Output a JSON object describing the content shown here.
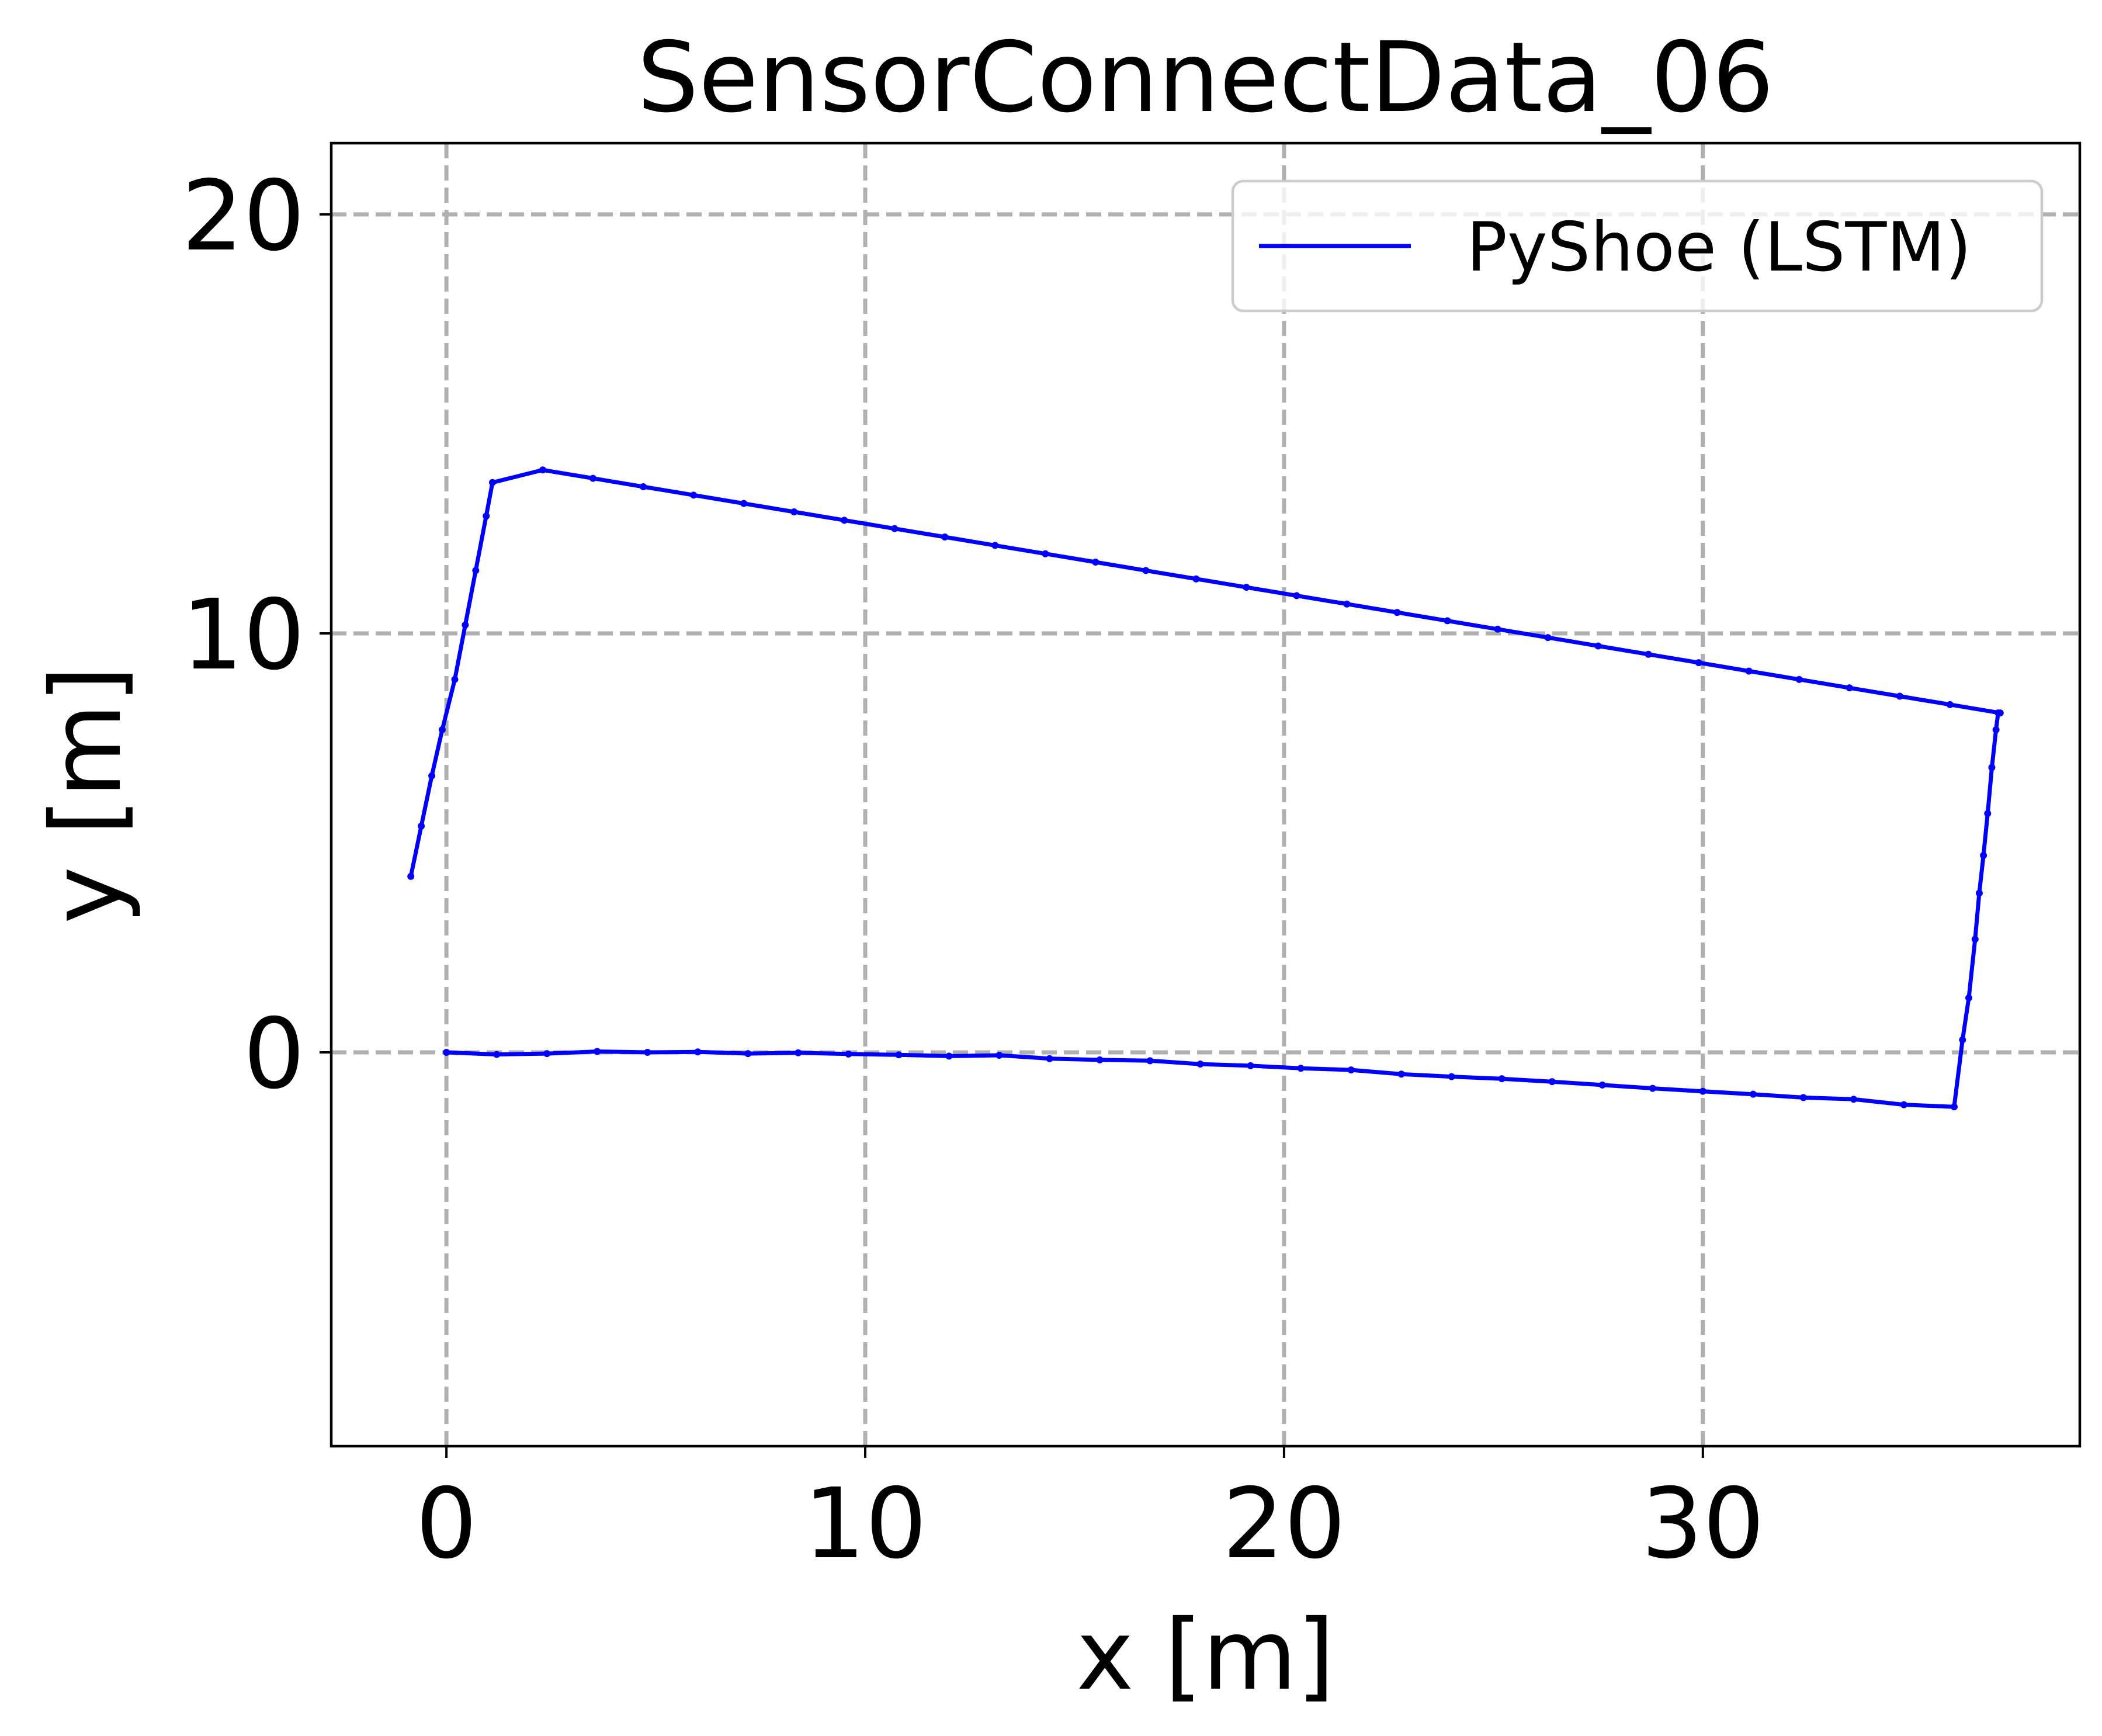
{
  "chart_data": {
    "type": "line",
    "title": "SensorConnectData_06",
    "xlabel": "x [m]",
    "ylabel": "y [m]",
    "xlim": [
      -2.75,
      39
    ],
    "ylim": [
      -9.4,
      21.7
    ],
    "xticks": [
      0,
      10,
      20,
      30
    ],
    "yticks": [
      0,
      10,
      20
    ],
    "tick_labels_x": [
      "0",
      "10",
      "20",
      "30"
    ],
    "tick_labels_y": [
      "0",
      "10",
      "20"
    ],
    "grid": true,
    "legend_position": "upper right",
    "series": [
      {
        "name": "PyShoe (LSTM)",
        "color": "#0000ff",
        "marker": "dot",
        "x": [
          0,
          1.2,
          2.4,
          3.6,
          4.8,
          6.0,
          7.2,
          8.4,
          9.6,
          10.8,
          12.0,
          13.2,
          14.4,
          15.6,
          16.8,
          18.0,
          19.2,
          20.4,
          21.6,
          22.8,
          24.0,
          25.2,
          26.4,
          27.6,
          28.8,
          30.0,
          31.2,
          32.4,
          33.6,
          34.8,
          36.0,
          36.2,
          36.35,
          36.5,
          36.6,
          36.7,
          36.8,
          36.9,
          37.0,
          37.05,
          37.1,
          35.9,
          34.7,
          33.5,
          32.3,
          31.1,
          29.9,
          28.7,
          27.5,
          26.3,
          25.1,
          23.9,
          22.7,
          21.5,
          20.3,
          19.1,
          17.9,
          16.7,
          15.5,
          14.3,
          13.1,
          11.9,
          10.7,
          9.5,
          8.3,
          7.1,
          5.9,
          4.7,
          3.5,
          2.3,
          1.1,
          0.95,
          0.7,
          0.45,
          0.2,
          -0.1,
          -0.35,
          -0.6,
          -0.85
        ],
        "y": [
          0.0,
          -0.05,
          -0.03,
          0.02,
          0.0,
          0.01,
          -0.03,
          -0.01,
          -0.04,
          -0.06,
          -0.09,
          -0.07,
          -0.15,
          -0.18,
          -0.2,
          -0.28,
          -0.32,
          -0.38,
          -0.42,
          -0.52,
          -0.58,
          -0.63,
          -0.7,
          -0.78,
          -0.86,
          -0.93,
          -1.0,
          -1.08,
          -1.12,
          -1.25,
          -1.3,
          0.3,
          1.3,
          2.7,
          3.8,
          4.7,
          5.7,
          6.8,
          7.7,
          8.1,
          8.1,
          8.3,
          8.5,
          8.7,
          8.9,
          9.1,
          9.3,
          9.5,
          9.7,
          9.9,
          10.1,
          10.3,
          10.5,
          10.7,
          10.9,
          11.1,
          11.3,
          11.5,
          11.7,
          11.9,
          12.1,
          12.3,
          12.5,
          12.7,
          12.9,
          13.1,
          13.3,
          13.5,
          13.7,
          13.9,
          13.6,
          12.8,
          11.5,
          10.2,
          8.9,
          7.7,
          6.6,
          5.4,
          4.2
        ]
      }
    ]
  }
}
